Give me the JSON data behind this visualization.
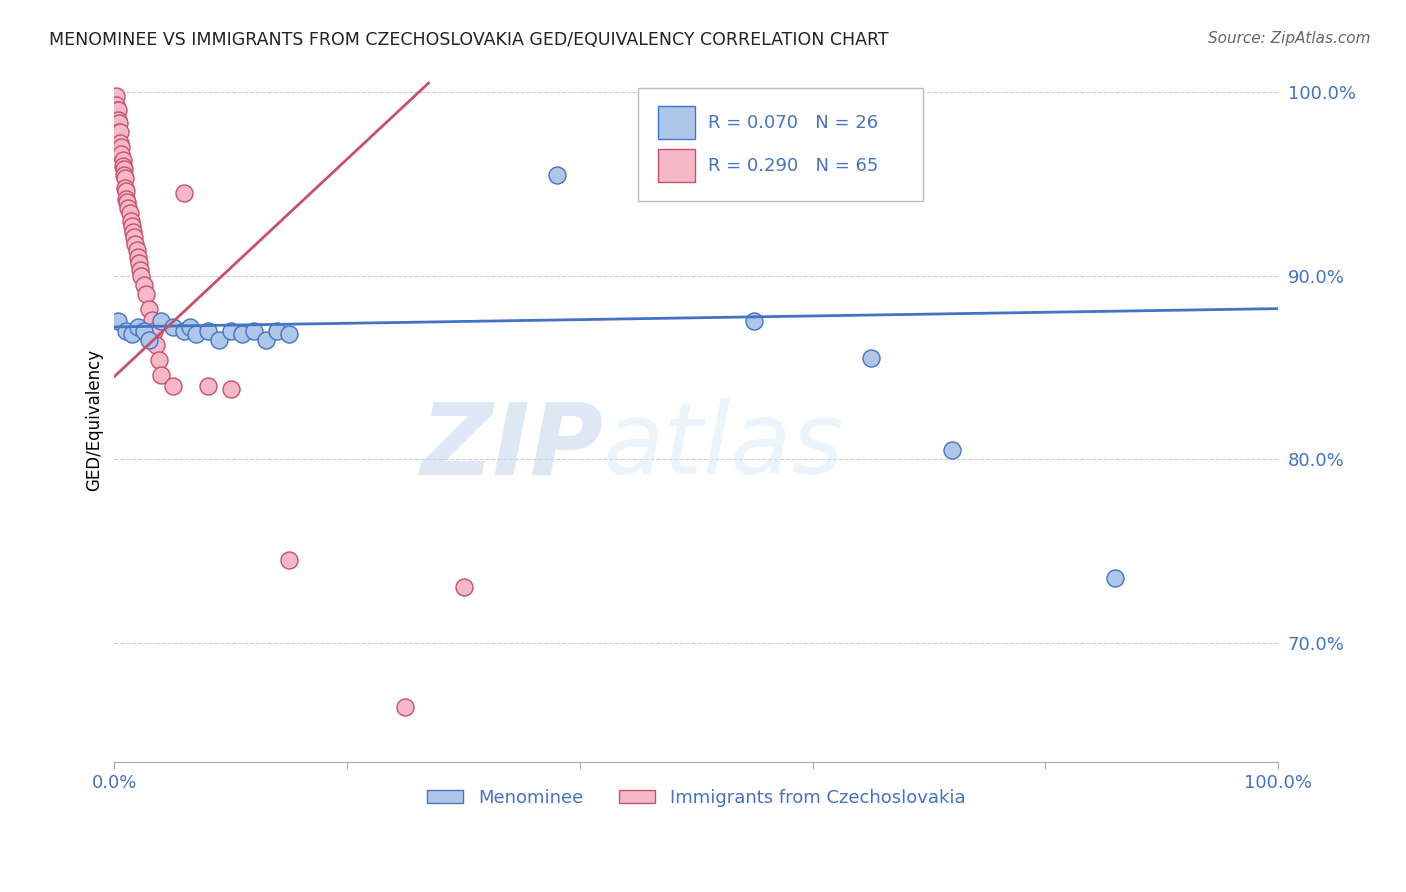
{
  "title": "MENOMINEE VS IMMIGRANTS FROM CZECHOSLOVAKIA GED/EQUIVALENCY CORRELATION CHART",
  "source": "Source: ZipAtlas.com",
  "ylabel": "GED/Equivalency",
  "watermark_part1": "ZIP",
  "watermark_part2": "atlas",
  "legend_label1": "Menominee",
  "legend_label2": "Immigrants from Czechoslovakia",
  "R1": 0.07,
  "N1": 26,
  "R2": 0.29,
  "N2": 65,
  "xlim": [
    0.0,
    1.0
  ],
  "ylim": [
    0.635,
    1.008
  ],
  "yticks": [
    0.7,
    0.8,
    0.9,
    1.0
  ],
  "ytick_labels": [
    "70.0%",
    "80.0%",
    "90.0%",
    "100.0%"
  ],
  "xticks": [
    0.0,
    0.2,
    0.4,
    0.6,
    0.8,
    1.0
  ],
  "xtick_labels": [
    "0.0%",
    "",
    "",
    "",
    "",
    "100.0%"
  ],
  "color_blue": "#aec6e8",
  "color_pink": "#f4b8c8",
  "line_color_blue": "#4472c4",
  "line_color_pink": "#c9506a",
  "title_color": "#222222",
  "axis_label_color": "#4472c4",
  "legend_text_color": "#4472c4",
  "grid_color": "#cccccc",
  "blue_x": [
    0.003,
    0.01,
    0.015,
    0.02,
    0.025,
    0.03,
    0.04,
    0.05,
    0.06,
    0.065,
    0.07,
    0.08,
    0.09,
    0.1,
    0.11,
    0.12,
    0.13,
    0.14,
    0.15,
    0.38,
    0.55,
    0.65,
    0.72,
    0.86
  ],
  "blue_y": [
    0.875,
    0.87,
    0.868,
    0.872,
    0.87,
    0.865,
    0.875,
    0.872,
    0.87,
    0.872,
    0.868,
    0.87,
    0.865,
    0.87,
    0.868,
    0.87,
    0.865,
    0.87,
    0.868,
    0.955,
    0.875,
    0.855,
    0.805,
    0.735
  ],
  "pink_x": [
    0.001,
    0.001,
    0.002,
    0.003,
    0.003,
    0.004,
    0.004,
    0.005,
    0.005,
    0.006,
    0.006,
    0.007,
    0.007,
    0.008,
    0.008,
    0.009,
    0.009,
    0.01,
    0.01,
    0.011,
    0.012,
    0.013,
    0.014,
    0.015,
    0.016,
    0.017,
    0.018,
    0.019,
    0.02,
    0.021,
    0.022,
    0.023,
    0.025,
    0.027,
    0.03,
    0.032,
    0.034,
    0.036,
    0.038,
    0.04,
    0.05,
    0.06,
    0.08,
    0.1,
    0.15,
    0.25,
    0.3
  ],
  "pink_y": [
    0.998,
    0.993,
    0.99,
    0.99,
    0.985,
    0.983,
    0.978,
    0.978,
    0.972,
    0.97,
    0.966,
    0.963,
    0.96,
    0.958,
    0.955,
    0.953,
    0.948,
    0.946,
    0.942,
    0.94,
    0.937,
    0.934,
    0.93,
    0.927,
    0.924,
    0.921,
    0.917,
    0.914,
    0.91,
    0.907,
    0.903,
    0.9,
    0.895,
    0.89,
    0.882,
    0.876,
    0.87,
    0.862,
    0.854,
    0.846,
    0.84,
    0.945,
    0.84,
    0.838,
    0.745,
    0.665,
    0.73
  ],
  "blue_trend_x": [
    0.0,
    1.0
  ],
  "blue_trend_y": [
    0.872,
    0.882
  ],
  "pink_trend_x": [
    0.0,
    0.27
  ],
  "pink_trend_y": [
    0.845,
    1.005
  ]
}
